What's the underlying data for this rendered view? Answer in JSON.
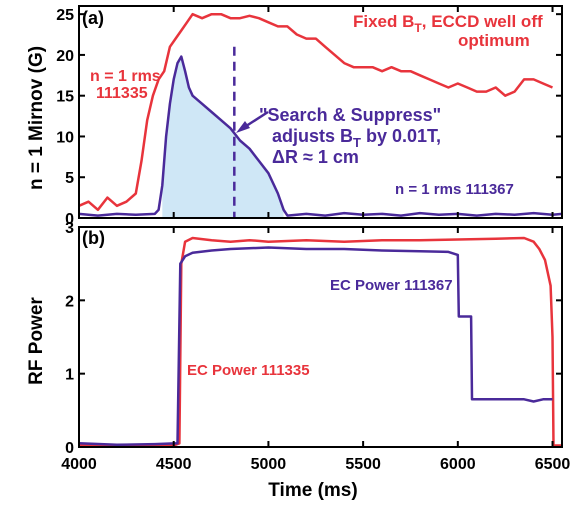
{
  "colors": {
    "red": "#e8343c",
    "blue": "#4a2a9a",
    "fill": "#cfe7f6",
    "axis": "#000000"
  },
  "chart_data": [
    {
      "panel_label": "(a)",
      "type": "line",
      "xlim": [
        4000,
        6550
      ],
      "ylim": [
        0,
        26
      ],
      "yticks": [
        "0",
        "5",
        "10",
        "15",
        "20",
        "25"
      ],
      "ylabel": "n = 1 Mirnov (G)",
      "annotations": {
        "red_series_label_line1": "n = 1 rms",
        "red_series_label_line2": "111335",
        "fixed_line1": "Fixed B",
        "fixed_line1_sub": "T",
        "fixed_line1_rest": ", ECCD well off",
        "fixed_line2": "optimum",
        "search_line1": "\"Search & Suppress\"",
        "search_line2": "adjusts B",
        "search_line2_sub": "T",
        "search_line2_rest": " by 0.01T,",
        "search_line3": "ΔR ≈ 1 cm",
        "blue_series_label": "n = 1 rms 111367"
      },
      "vline_x": 4820,
      "series": [
        {
          "name": "n = 1 rms 111335",
          "color": "red",
          "points": [
            [
              4000,
              1.5
            ],
            [
              4050,
              2
            ],
            [
              4100,
              1
            ],
            [
              4150,
              2.5
            ],
            [
              4200,
              1.5
            ],
            [
              4250,
              2
            ],
            [
              4300,
              3
            ],
            [
              4330,
              7
            ],
            [
              4360,
              12
            ],
            [
              4390,
              15
            ],
            [
              4420,
              17
            ],
            [
              4450,
              18
            ],
            [
              4480,
              21
            ],
            [
              4510,
              22
            ],
            [
              4540,
              23
            ],
            [
              4570,
              24
            ],
            [
              4600,
              25
            ],
            [
              4650,
              24.5
            ],
            [
              4700,
              25
            ],
            [
              4750,
              25
            ],
            [
              4800,
              24.5
            ],
            [
              4850,
              24.5
            ],
            [
              4900,
              24.8
            ],
            [
              4950,
              24.5
            ],
            [
              5000,
              24
            ],
            [
              5050,
              23.5
            ],
            [
              5100,
              23.5
            ],
            [
              5150,
              22.5
            ],
            [
              5200,
              22
            ],
            [
              5250,
              22
            ],
            [
              5300,
              21
            ],
            [
              5350,
              20
            ],
            [
              5400,
              19
            ],
            [
              5450,
              18.5
            ],
            [
              5500,
              18.5
            ],
            [
              5550,
              18.5
            ],
            [
              5600,
              18
            ],
            [
              5650,
              18.5
            ],
            [
              5700,
              18
            ],
            [
              5750,
              18
            ],
            [
              5800,
              17.5
            ],
            [
              5850,
              17
            ],
            [
              5900,
              16.5
            ],
            [
              5950,
              16
            ],
            [
              6000,
              16.5
            ],
            [
              6050,
              16
            ],
            [
              6100,
              15.5
            ],
            [
              6150,
              15.5
            ],
            [
              6200,
              16
            ],
            [
              6250,
              15
            ],
            [
              6300,
              15.5
            ],
            [
              6350,
              17
            ],
            [
              6400,
              17
            ],
            [
              6450,
              16.5
            ],
            [
              6500,
              16
            ]
          ]
        },
        {
          "name": "n = 1 rms 111367",
          "color": "blue",
          "points": [
            [
              4000,
              0.5
            ],
            [
              4100,
              0.3
            ],
            [
              4200,
              0.5
            ],
            [
              4300,
              0.4
            ],
            [
              4400,
              0.5
            ],
            [
              4420,
              1
            ],
            [
              4440,
              4
            ],
            [
              4460,
              10
            ],
            [
              4480,
              14
            ],
            [
              4500,
              17
            ],
            [
              4520,
              19
            ],
            [
              4540,
              19.8
            ],
            [
              4560,
              18
            ],
            [
              4580,
              16
            ],
            [
              4600,
              15
            ],
            [
              4650,
              14
            ],
            [
              4700,
              13
            ],
            [
              4750,
              12
            ],
            [
              4800,
              11
            ],
            [
              4850,
              9.5
            ],
            [
              4900,
              8.5
            ],
            [
              4950,
              7
            ],
            [
              5000,
              5.5
            ],
            [
              5050,
              3
            ],
            [
              5080,
              1
            ],
            [
              5100,
              0.3
            ],
            [
              5200,
              0.5
            ],
            [
              5300,
              0.3
            ],
            [
              5400,
              0.6
            ],
            [
              5500,
              0.4
            ],
            [
              5600,
              0.5
            ],
            [
              5700,
              0.3
            ],
            [
              5800,
              0.6
            ],
            [
              5900,
              0.4
            ],
            [
              6000,
              0.5
            ],
            [
              6100,
              0.3
            ],
            [
              6200,
              0.5
            ],
            [
              6300,
              0.4
            ],
            [
              6400,
              0.6
            ],
            [
              6500,
              0.4
            ],
            [
              6550,
              0.5
            ]
          ]
        }
      ]
    },
    {
      "panel_label": "(b)",
      "type": "line",
      "xlim": [
        4000,
        6550
      ],
      "ylim": [
        0,
        3
      ],
      "xticks": [
        "4000",
        "4500",
        "5000",
        "5500",
        "6000",
        "6500"
      ],
      "yticks": [
        "0",
        "1",
        "2",
        "3"
      ],
      "ylabel": "RF Power",
      "xlabel": "Time (ms)",
      "annotations": {
        "blue_series_label": "EC Power 111367",
        "red_series_label": "EC Power 111335"
      },
      "series": [
        {
          "name": "EC Power 111335",
          "color": "red",
          "points": [
            [
              4000,
              0.02
            ],
            [
              4500,
              0.02
            ],
            [
              4530,
              0.05
            ],
            [
              4540,
              2.5
            ],
            [
              4560,
              2.8
            ],
            [
              4600,
              2.85
            ],
            [
              4700,
              2.82
            ],
            [
              4800,
              2.8
            ],
            [
              4900,
              2.82
            ],
            [
              5000,
              2.8
            ],
            [
              5200,
              2.82
            ],
            [
              5400,
              2.8
            ],
            [
              5600,
              2.82
            ],
            [
              5800,
              2.82
            ],
            [
              6000,
              2.83
            ],
            [
              6200,
              2.84
            ],
            [
              6350,
              2.85
            ],
            [
              6400,
              2.8
            ],
            [
              6430,
              2.7
            ],
            [
              6460,
              2.55
            ],
            [
              6490,
              2.2
            ],
            [
              6500,
              1.5
            ],
            [
              6505,
              0.02
            ],
            [
              6550,
              0.02
            ]
          ]
        },
        {
          "name": "EC Power 111367",
          "color": "blue",
          "points": [
            [
              4000,
              0.05
            ],
            [
              4200,
              0.03
            ],
            [
              4400,
              0.04
            ],
            [
              4520,
              0.05
            ],
            [
              4535,
              2.5
            ],
            [
              4560,
              2.6
            ],
            [
              4600,
              2.65
            ],
            [
              4700,
              2.68
            ],
            [
              4800,
              2.7
            ],
            [
              5000,
              2.72
            ],
            [
              5200,
              2.7
            ],
            [
              5400,
              2.7
            ],
            [
              5600,
              2.68
            ],
            [
              5800,
              2.67
            ],
            [
              5950,
              2.66
            ],
            [
              6000,
              2.62
            ],
            [
              6005,
              1.78
            ],
            [
              6070,
              1.78
            ],
            [
              6075,
              0.65
            ],
            [
              6200,
              0.65
            ],
            [
              6350,
              0.65
            ],
            [
              6400,
              0.62
            ],
            [
              6450,
              0.65
            ],
            [
              6500,
              0.65
            ]
          ]
        }
      ]
    }
  ]
}
